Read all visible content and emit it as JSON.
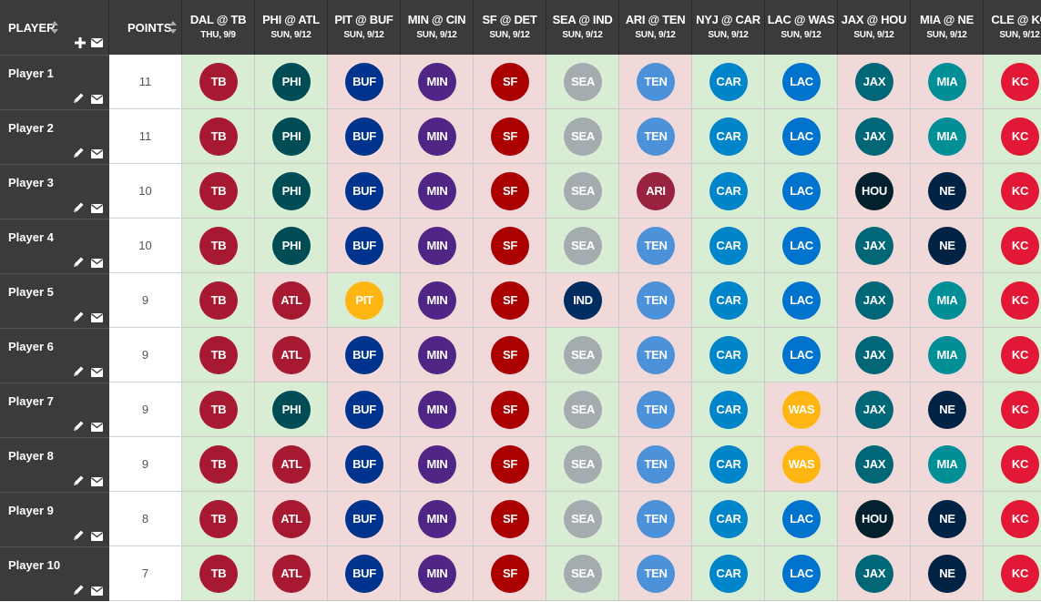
{
  "header": {
    "player_label": "PLAYER",
    "points_label": "POINTS"
  },
  "games": [
    {
      "matchup": "DAL @ TB",
      "date": "THU, 9/9"
    },
    {
      "matchup": "PHI @ ATL",
      "date": "SUN, 9/12"
    },
    {
      "matchup": "PIT @ BUF",
      "date": "SUN, 9/12"
    },
    {
      "matchup": "MIN @ CIN",
      "date": "SUN, 9/12"
    },
    {
      "matchup": "SF @ DET",
      "date": "SUN, 9/12"
    },
    {
      "matchup": "SEA @ IND",
      "date": "SUN, 9/12"
    },
    {
      "matchup": "ARI @ TEN",
      "date": "SUN, 9/12"
    },
    {
      "matchup": "NYJ @ CAR",
      "date": "SUN, 9/12"
    },
    {
      "matchup": "LAC @ WAS",
      "date": "SUN, 9/12"
    },
    {
      "matchup": "JAX @ HOU",
      "date": "SUN, 9/12"
    },
    {
      "matchup": "MIA @ NE",
      "date": "SUN, 9/12"
    },
    {
      "matchup": "CLE @ KC",
      "date": "SUN, 9/12"
    }
  ],
  "players": [
    {
      "name": "Player 1",
      "points": "11",
      "picks": [
        "TB",
        "PHI",
        "BUF",
        "MIN",
        "SF",
        "SEA",
        "TEN",
        "CAR",
        "LAC",
        "JAX",
        "MIA",
        "KC"
      ],
      "correct": [
        true,
        true,
        false,
        false,
        false,
        true,
        false,
        true,
        true,
        false,
        false,
        true
      ]
    },
    {
      "name": "Player 2",
      "points": "11",
      "picks": [
        "TB",
        "PHI",
        "BUF",
        "MIN",
        "SF",
        "SEA",
        "TEN",
        "CAR",
        "LAC",
        "JAX",
        "MIA",
        "KC"
      ],
      "correct": [
        true,
        true,
        false,
        false,
        false,
        true,
        false,
        true,
        true,
        false,
        false,
        true
      ]
    },
    {
      "name": "Player 3",
      "points": "10",
      "picks": [
        "TB",
        "PHI",
        "BUF",
        "MIN",
        "SF",
        "SEA",
        "ARI",
        "CAR",
        "LAC",
        "HOU",
        "NE",
        "KC"
      ],
      "correct": [
        true,
        true,
        false,
        false,
        false,
        true,
        false,
        true,
        true,
        false,
        false,
        true
      ]
    },
    {
      "name": "Player 4",
      "points": "10",
      "picks": [
        "TB",
        "PHI",
        "BUF",
        "MIN",
        "SF",
        "SEA",
        "TEN",
        "CAR",
        "LAC",
        "JAX",
        "NE",
        "KC"
      ],
      "correct": [
        true,
        true,
        false,
        false,
        false,
        true,
        false,
        true,
        true,
        false,
        false,
        true
      ]
    },
    {
      "name": "Player 5",
      "points": "9",
      "picks": [
        "TB",
        "ATL",
        "PIT",
        "MIN",
        "SF",
        "IND",
        "TEN",
        "CAR",
        "LAC",
        "JAX",
        "MIA",
        "KC"
      ],
      "correct": [
        true,
        false,
        true,
        false,
        false,
        false,
        false,
        true,
        true,
        false,
        false,
        true
      ]
    },
    {
      "name": "Player 6",
      "points": "9",
      "picks": [
        "TB",
        "ATL",
        "BUF",
        "MIN",
        "SF",
        "SEA",
        "TEN",
        "CAR",
        "LAC",
        "JAX",
        "MIA",
        "KC"
      ],
      "correct": [
        true,
        false,
        false,
        false,
        false,
        true,
        false,
        true,
        true,
        false,
        false,
        true
      ]
    },
    {
      "name": "Player 7",
      "points": "9",
      "picks": [
        "TB",
        "PHI",
        "BUF",
        "MIN",
        "SF",
        "SEA",
        "TEN",
        "CAR",
        "WAS",
        "JAX",
        "NE",
        "KC"
      ],
      "correct": [
        true,
        true,
        false,
        false,
        false,
        true,
        false,
        true,
        false,
        false,
        false,
        true
      ]
    },
    {
      "name": "Player 8",
      "points": "9",
      "picks": [
        "TB",
        "ATL",
        "BUF",
        "MIN",
        "SF",
        "SEA",
        "TEN",
        "CAR",
        "WAS",
        "JAX",
        "MIA",
        "KC"
      ],
      "correct": [
        true,
        false,
        false,
        false,
        false,
        true,
        false,
        true,
        false,
        false,
        false,
        true
      ]
    },
    {
      "name": "Player 9",
      "points": "8",
      "picks": [
        "TB",
        "ATL",
        "BUF",
        "MIN",
        "SF",
        "SEA",
        "TEN",
        "CAR",
        "LAC",
        "HOU",
        "NE",
        "KC"
      ],
      "correct": [
        true,
        false,
        false,
        false,
        false,
        true,
        false,
        true,
        true,
        false,
        false,
        true
      ]
    },
    {
      "name": "Player 10",
      "points": "7",
      "picks": [
        "TB",
        "ATL",
        "BUF",
        "MIN",
        "SF",
        "SEA",
        "TEN",
        "CAR",
        "LAC",
        "JAX",
        "NE",
        "KC"
      ],
      "correct": [
        true,
        false,
        false,
        false,
        false,
        true,
        false,
        true,
        true,
        false,
        false,
        true
      ]
    }
  ],
  "team_colors": {
    "TB": "#a71930",
    "PHI": "#004c54",
    "ATL": "#a71930",
    "BUF": "#00338d",
    "PIT": "#ffb612",
    "MIN": "#4f2683",
    "SF": "#aa0000",
    "SEA": "#a5acaf",
    "IND": "#002c5f",
    "TEN": "#4b92db",
    "ARI": "#97233f",
    "CAR": "#0085ca",
    "LAC": "#0073cf",
    "WAS": "#ffb612",
    "JAX": "#006778",
    "HOU": "#03202f",
    "MIA": "#008e97",
    "NE": "#002244",
    "KC": "#e31837"
  },
  "status_colors": {
    "correct": "#d9ecd4",
    "incorrect": "#f2d9d9"
  }
}
